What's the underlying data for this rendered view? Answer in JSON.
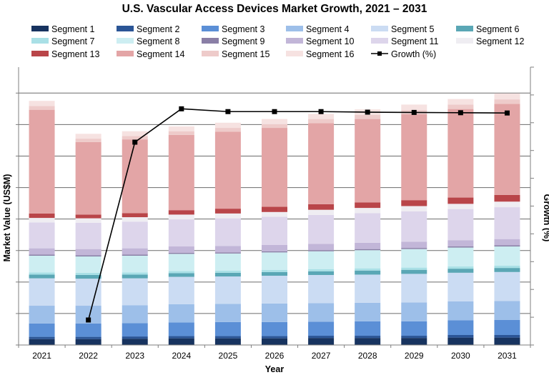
{
  "chart_data": {
    "type": "bar",
    "stacked": true,
    "title": "U.S. Vascular Access Devices Market Growth, 2021 – 2031",
    "xlabel": "Year",
    "ylabel": "Market Value (US$M)",
    "y2label": "Growth (%)",
    "ytick_labels_shown": false,
    "grid": "horizontal",
    "legend_position": "top",
    "categories": [
      "2021",
      "2022",
      "2023",
      "2024",
      "2025",
      "2026",
      "2027",
      "2028",
      "2029",
      "2030",
      "2031"
    ],
    "series": [
      {
        "name": "Segment 1",
        "color": "#17335f",
        "values": [
          1.6,
          1.6,
          1.7,
          1.8,
          1.8,
          1.8,
          1.9,
          1.9,
          1.9,
          2.0,
          2.0
        ]
      },
      {
        "name": "Segment 2",
        "color": "#2b5596",
        "values": [
          0.6,
          0.6,
          0.6,
          0.6,
          0.6,
          0.6,
          0.6,
          0.6,
          0.6,
          0.7,
          0.7
        ]
      },
      {
        "name": "Segment 3",
        "color": "#5b8fd6",
        "values": [
          3.6,
          3.6,
          3.6,
          3.7,
          3.8,
          3.8,
          3.8,
          3.9,
          3.9,
          4.0,
          4.1
        ]
      },
      {
        "name": "Segment 4",
        "color": "#9dbfe9",
        "values": [
          4.8,
          4.8,
          4.8,
          4.9,
          4.9,
          5.0,
          5.0,
          5.0,
          5.1,
          5.1,
          5.1
        ]
      },
      {
        "name": "Segment 5",
        "color": "#cbdcf3",
        "values": [
          7.4,
          7.3,
          7.3,
          7.4,
          7.4,
          7.5,
          7.6,
          7.6,
          7.7,
          7.7,
          7.8
        ]
      },
      {
        "name": "Segment 6",
        "color": "#5aa7b5",
        "values": [
          1.0,
          1.0,
          1.0,
          1.0,
          1.0,
          1.0,
          1.0,
          1.1,
          1.1,
          1.1,
          1.1
        ]
      },
      {
        "name": "Segment 7",
        "color": "#a9e0e6",
        "values": [
          0.6,
          0.6,
          0.6,
          0.6,
          0.6,
          0.6,
          0.6,
          0.6,
          0.6,
          0.6,
          0.6
        ]
      },
      {
        "name": "Segment 8",
        "color": "#cdeef2",
        "values": [
          4.5,
          4.4,
          4.5,
          4.6,
          4.6,
          4.7,
          4.8,
          4.9,
          5.0,
          5.1,
          5.2
        ]
      },
      {
        "name": "Segment 9",
        "color": "#8a7fa6",
        "values": [
          0.3,
          0.3,
          0.3,
          0.3,
          0.3,
          0.3,
          0.3,
          0.3,
          0.3,
          0.3,
          0.3
        ]
      },
      {
        "name": "Segment 10",
        "color": "#c2b6d8",
        "values": [
          1.7,
          1.7,
          1.7,
          1.7,
          1.7,
          1.7,
          1.7,
          1.7,
          1.7,
          1.7,
          1.7
        ]
      },
      {
        "name": "Segment 11",
        "color": "#ddd5eb",
        "values": [
          7.0,
          7.1,
          7.2,
          7.3,
          7.5,
          7.6,
          7.8,
          8.0,
          8.2,
          8.4,
          8.6
        ]
      },
      {
        "name": "Segment 12",
        "color": "#efedf2",
        "values": [
          1.2,
          1.2,
          1.2,
          1.3,
          1.3,
          1.3,
          1.4,
          1.4,
          1.4,
          1.4,
          1.5
        ]
      },
      {
        "name": "Segment 13",
        "color": "#b94549",
        "values": [
          1.2,
          1.0,
          1.1,
          1.2,
          1.3,
          1.4,
          1.5,
          1.5,
          1.6,
          1.7,
          1.8
        ]
      },
      {
        "name": "Segment 14",
        "color": "#e3a5a6",
        "values": [
          28.0,
          19.6,
          19.9,
          20.3,
          20.8,
          21.3,
          21.9,
          22.5,
          23.2,
          23.9,
          24.6
        ]
      },
      {
        "name": "Segment 15",
        "color": "#eecbca",
        "values": [
          1.0,
          0.9,
          0.9,
          1.0,
          1.0,
          1.0,
          1.1,
          1.1,
          1.1,
          1.2,
          1.2
        ]
      },
      {
        "name": "Segment 16",
        "color": "#f6e2e1",
        "values": [
          1.4,
          1.3,
          1.3,
          1.3,
          1.4,
          1.4,
          1.4,
          1.5,
          1.5,
          1.5,
          1.6
        ]
      }
    ],
    "ylim": [
      0,
      75
    ],
    "yticks": [
      0,
      8.5,
      17,
      25.5,
      34,
      42.5,
      51,
      59.5,
      68
    ],
    "growth": {
      "name": "Growth (%)",
      "color": "#000000",
      "values": [
        null,
        0.9,
        7.3,
        8.5,
        8.4,
        8.4,
        8.4,
        8.38,
        8.37,
        8.36,
        8.35
      ],
      "ylim": [
        0,
        10
      ]
    }
  }
}
